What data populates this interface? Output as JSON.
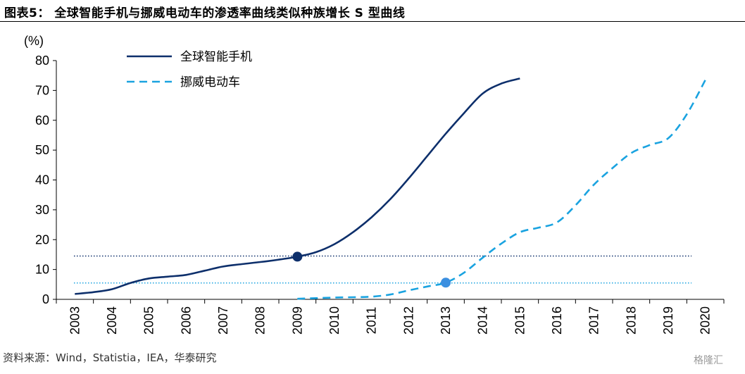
{
  "title": "图表5：  全球智能手机与挪威电动车的渗透率曲线类似种族增长 S 型曲线",
  "source": "资料来源：Wind，Statistia，IEA，华泰研究",
  "watermark": "格隆汇",
  "colors": {
    "smartphone": "#0d2f6b",
    "ev": "#1aa3e0",
    "axis": "#000000"
  },
  "chart_data": {
    "type": "line",
    "ylabel": "(%)",
    "ylim": [
      0,
      80
    ],
    "yticks": [
      0,
      10,
      20,
      30,
      40,
      50,
      60,
      70,
      80
    ],
    "categories": [
      "2003",
      "2004",
      "2005",
      "2006",
      "2007",
      "2008",
      "2009",
      "2010",
      "2011",
      "2012",
      "2013",
      "2014",
      "2015",
      "2016",
      "2017",
      "2018",
      "2019",
      "2020"
    ],
    "grid": false,
    "legend_position": "top-left",
    "series": [
      {
        "name": "全球智能手机",
        "style": "solid",
        "x": [
          2003,
          2003.5,
          2004,
          2004.5,
          2005,
          2005.5,
          2006,
          2006.5,
          2007,
          2007.5,
          2008,
          2008.5,
          2009,
          2009.5,
          2010,
          2010.5,
          2011,
          2011.5,
          2012,
          2012.5,
          2013,
          2013.5,
          2014,
          2014.5,
          2015
        ],
        "values": [
          1.8,
          2.4,
          3.4,
          5.5,
          7.0,
          7.6,
          8.2,
          9.6,
          11.0,
          11.8,
          12.5,
          13.3,
          14.3,
          15.8,
          18.5,
          22.5,
          27.5,
          33.5,
          40.5,
          48.0,
          55.5,
          62.5,
          69.0,
          72.3,
          74.0
        ]
      },
      {
        "name": "挪威电动车",
        "style": "dashed",
        "x": [
          2009,
          2009.5,
          2010,
          2010.5,
          2011,
          2011.5,
          2012,
          2012.5,
          2013,
          2013.5,
          2014,
          2014.5,
          2015,
          2015.5,
          2016,
          2016.5,
          2017,
          2017.5,
          2018,
          2018.5,
          2019,
          2019.5,
          2020
        ],
        "values": [
          0.2,
          0.4,
          0.6,
          0.7,
          0.9,
          1.6,
          3.0,
          4.3,
          5.6,
          9.0,
          14.0,
          18.7,
          22.5,
          24.0,
          25.8,
          31.5,
          38.5,
          44.0,
          49.0,
          51.7,
          54.0,
          62.0,
          73.5
        ]
      }
    ],
    "reference_lines": [
      {
        "y": 14.5,
        "series": "全球智能手机",
        "style": "dotted"
      },
      {
        "y": 5.5,
        "series": "挪威电动车",
        "style": "dotted"
      }
    ],
    "markers": [
      {
        "series": "全球智能手机",
        "x": 2009,
        "y": 14.3
      },
      {
        "series": "挪威电动车",
        "x": 2013,
        "y": 5.6
      }
    ]
  }
}
